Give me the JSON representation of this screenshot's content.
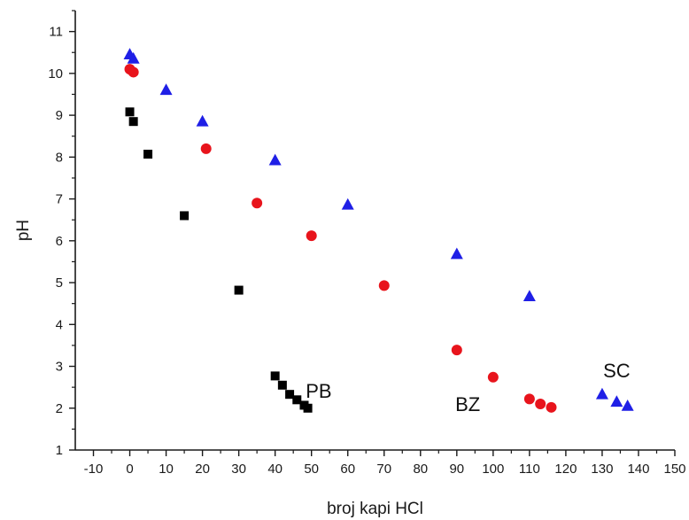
{
  "chart_data": {
    "type": "scatter",
    "xlabel": "broj kapi HCl",
    "ylabel": "pH",
    "xlim": [
      -15,
      150
    ],
    "ylim": [
      1,
      11.5
    ],
    "xticks": [
      -10,
      0,
      10,
      20,
      30,
      40,
      50,
      60,
      70,
      80,
      90,
      100,
      110,
      120,
      130,
      140,
      150
    ],
    "yticks": [
      1,
      2,
      3,
      4,
      5,
      6,
      7,
      8,
      9,
      10,
      11
    ],
    "grid": false,
    "series": [
      {
        "marker": "square",
        "color": "#000000",
        "points": [
          {
            "x": 0,
            "y": 9.08
          },
          {
            "x": 1,
            "y": 8.85
          },
          {
            "x": 5,
            "y": 8.07
          },
          {
            "x": 15,
            "y": 6.6
          },
          {
            "x": 30,
            "y": 4.82
          },
          {
            "x": 40,
            "y": 2.77
          },
          {
            "x": 42,
            "y": 2.55
          },
          {
            "x": 44,
            "y": 2.33
          },
          {
            "x": 46,
            "y": 2.2
          },
          {
            "x": 48,
            "y": 2.07
          },
          {
            "x": 49,
            "y": 2.0
          }
        ]
      },
      {
        "marker": "circle",
        "color": "#e8141c",
        "points": [
          {
            "x": 0,
            "y": 10.1
          },
          {
            "x": 1,
            "y": 10.03
          },
          {
            "x": 21,
            "y": 8.2
          },
          {
            "x": 35,
            "y": 6.9
          },
          {
            "x": 50,
            "y": 6.12
          },
          {
            "x": 70,
            "y": 4.93
          },
          {
            "x": 90,
            "y": 3.39
          },
          {
            "x": 100,
            "y": 2.74
          },
          {
            "x": 110,
            "y": 2.22
          },
          {
            "x": 113,
            "y": 2.1
          },
          {
            "x": 116,
            "y": 2.02
          }
        ]
      },
      {
        "marker": "triangle",
        "color": "#1f1fe6",
        "points": [
          {
            "x": 0,
            "y": 10.45
          },
          {
            "x": 1,
            "y": 10.35
          },
          {
            "x": 10,
            "y": 9.6
          },
          {
            "x": 20,
            "y": 8.85
          },
          {
            "x": 40,
            "y": 7.92
          },
          {
            "x": 60,
            "y": 6.86
          },
          {
            "x": 90,
            "y": 5.68
          },
          {
            "x": 110,
            "y": 4.67
          },
          {
            "x": 130,
            "y": 2.33
          },
          {
            "x": 134,
            "y": 2.15
          },
          {
            "x": 137,
            "y": 2.05
          }
        ]
      }
    ],
    "annotations": [
      {
        "text": "PB",
        "x": 52,
        "y": 2.42
      },
      {
        "text": "BZ",
        "x": 93,
        "y": 2.1
      },
      {
        "text": "SC",
        "x": 134,
        "y": 2.9
      }
    ]
  }
}
